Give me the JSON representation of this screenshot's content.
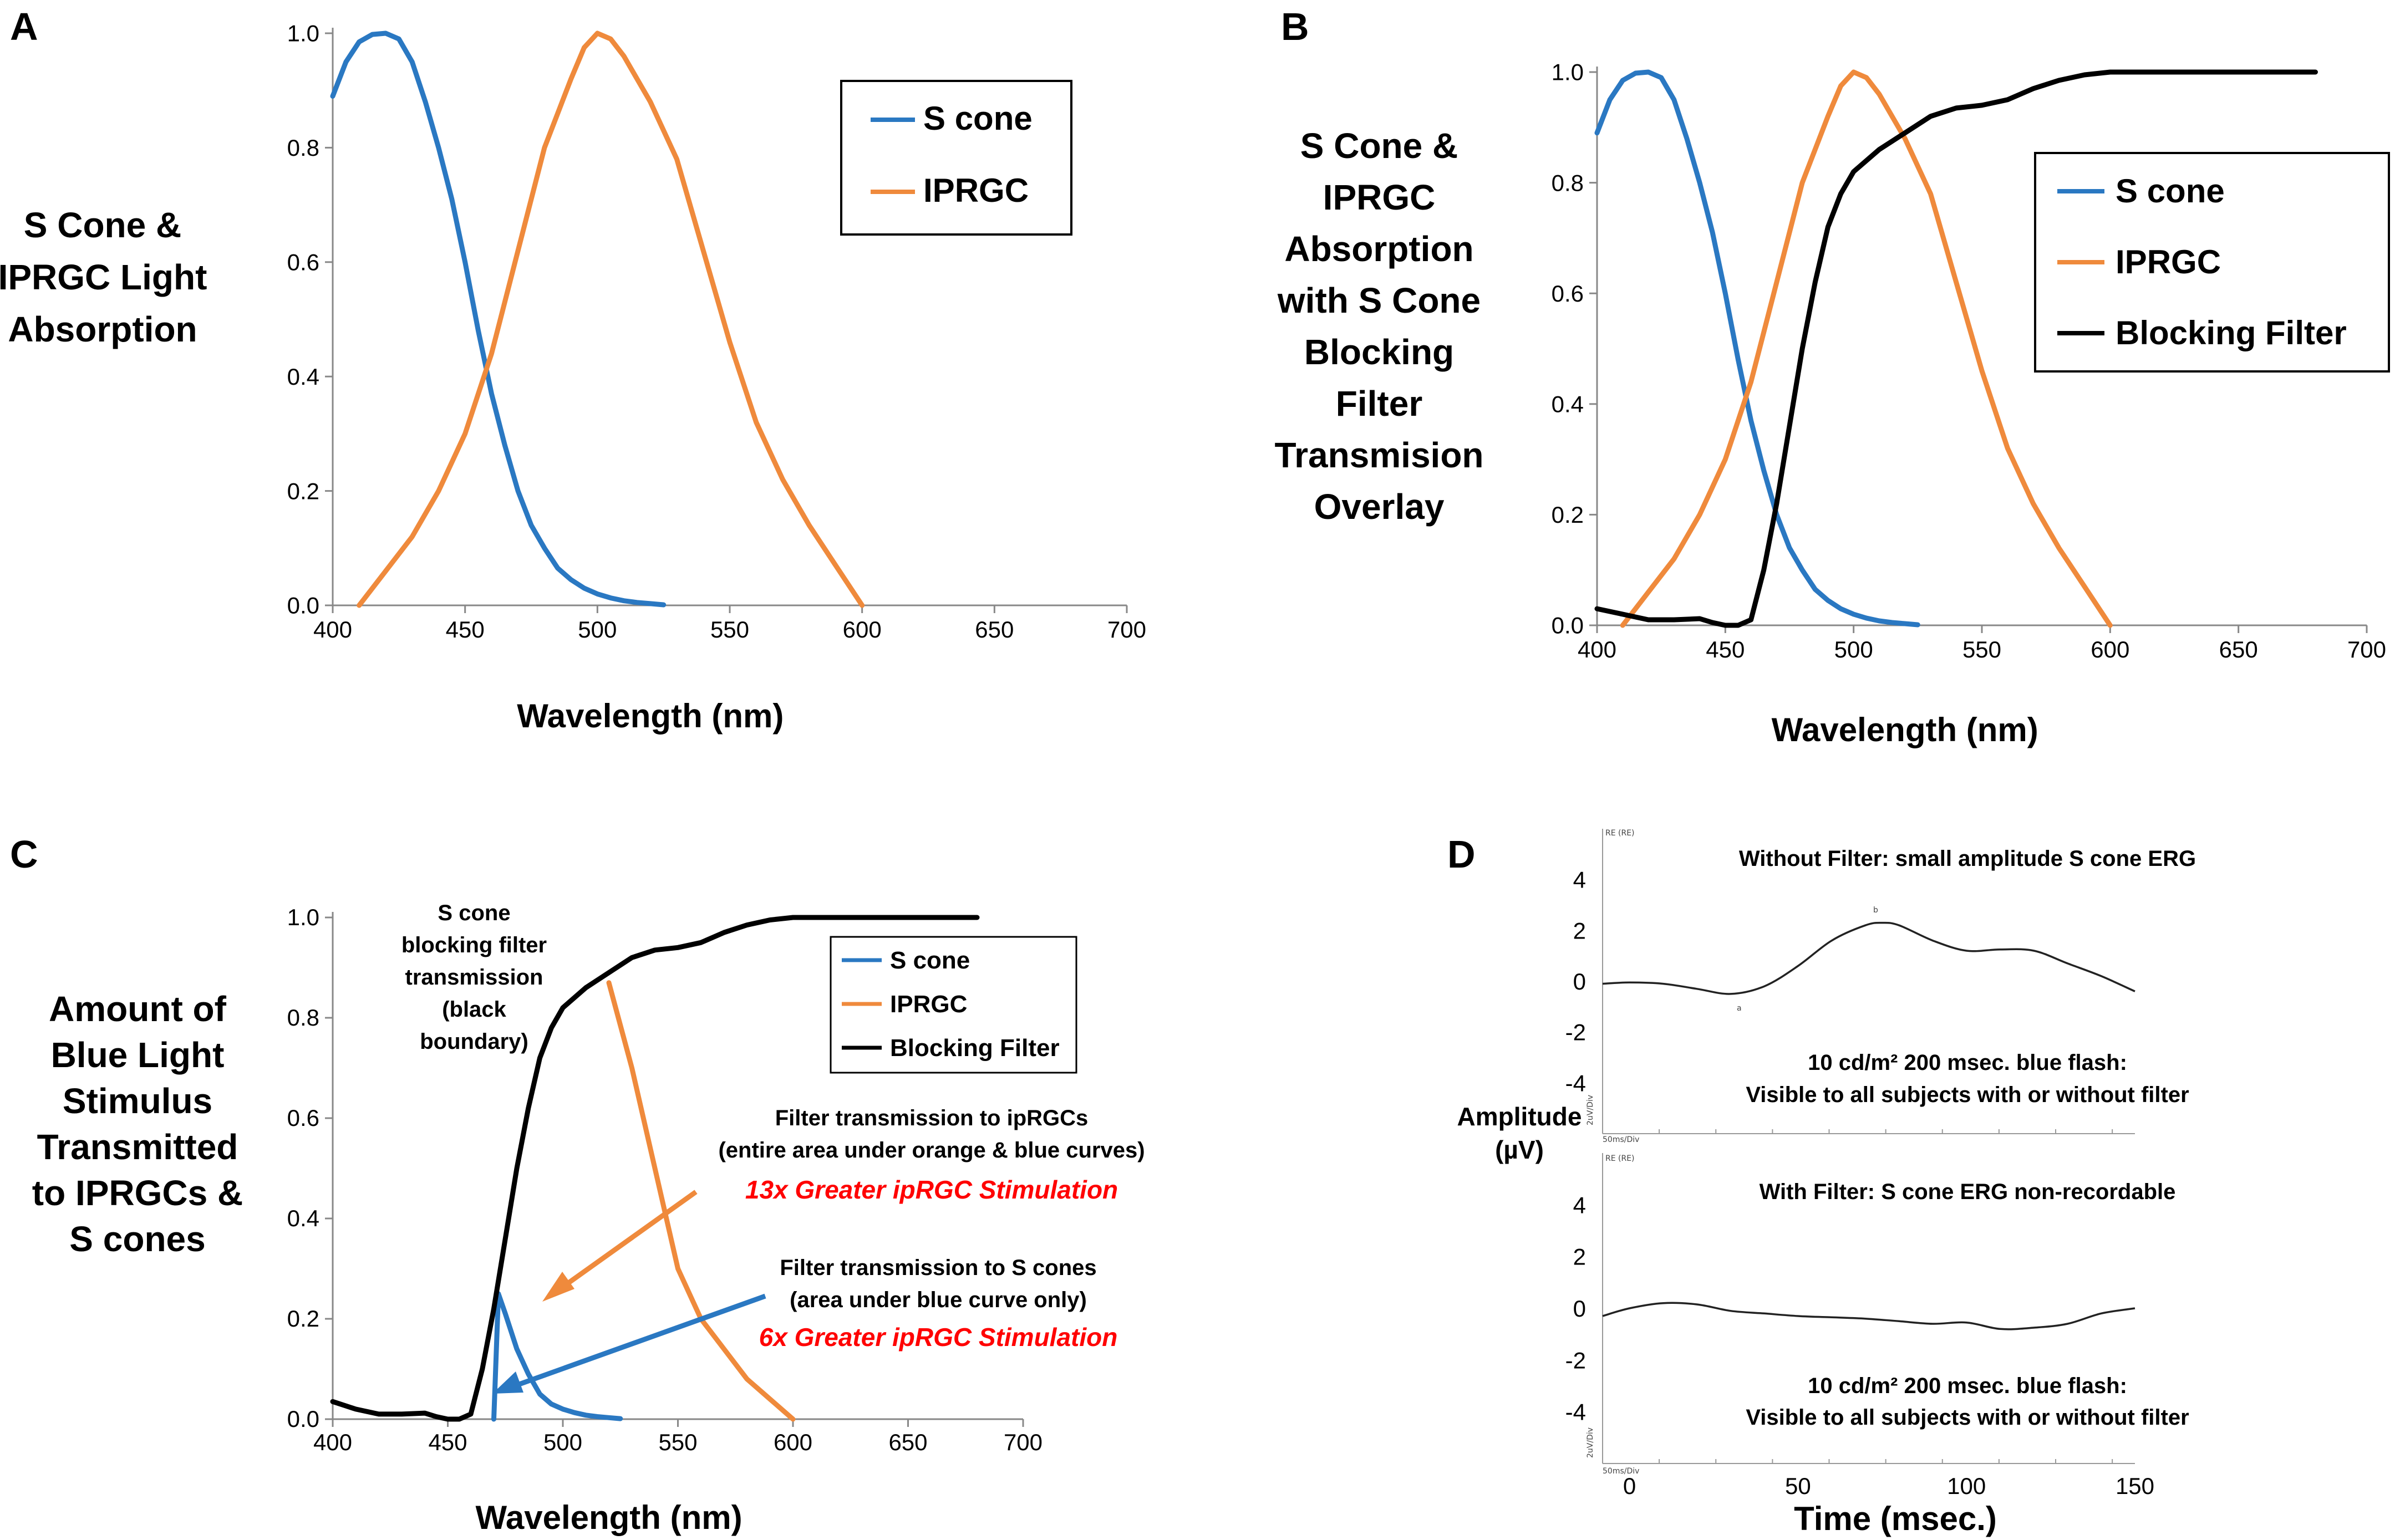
{
  "colors": {
    "s_cone": "#2a78c2",
    "iprgc": "#ef8a3c",
    "blocking": "#000000",
    "red_text": "#ff0000",
    "trace": "#222222"
  },
  "panels": {
    "A": {
      "letter": "A",
      "side_label": [
        "S Cone &",
        "IPRGC Light",
        "Absorption"
      ],
      "legend": [
        "S cone",
        "IPRGC"
      ]
    },
    "B": {
      "letter": "B",
      "side_label": [
        "S Cone &",
        "IPRGC",
        "Absorption",
        "with S Cone",
        "Blocking",
        "Filter",
        "Transmision",
        "Overlay"
      ],
      "legend": [
        "S cone",
        "IPRGC",
        "Blocking Filter"
      ]
    },
    "C": {
      "letter": "C",
      "side_label": [
        "Amount of",
        "Blue Light",
        "Stimulus",
        "Transmitted",
        "to IPRGCs &",
        "S cones"
      ],
      "legend": [
        "S cone",
        "IPRGC",
        "Blocking Filter"
      ],
      "annotations": {
        "filter_boundary": [
          "S cone",
          "blocking filter",
          "transmission",
          "(black",
          "boundary)"
        ],
        "iprgc_transmission": [
          "Filter transmission to ipRGCs",
          "(entire area under orange & blue curves)"
        ],
        "iprgc_gain": "13x Greater ipRGC Stimulation",
        "scone_transmission": [
          "Filter transmission to S cones",
          "(area under blue curve only)"
        ],
        "scone_gain": "6x Greater ipRGC Stimulation"
      }
    },
    "D": {
      "letter": "D",
      "ylabel_lines": [
        "Amplitude",
        "(µV)"
      ],
      "xlabel": "Time (msec.)",
      "top_title": "Without Filter: small amplitude S cone ERG",
      "bottom_title": "With Filter: S cone ERG non-recordable",
      "flash_line1": "10 cd/m² 200 msec. blue flash:",
      "flash_line2": "Visible to all subjects with or without filter",
      "flash_line1_b": "10 cd/m² 200 msec. blue flash:",
      "flash_line2_b": "Visible to all subjects with or without filter",
      "scale_label": "50ms/Div",
      "scale_label_b": "50ms/Div",
      "channel_label": "RE (RE)",
      "channel_label_b": "RE (RE)",
      "unit_label": "2uV/Div",
      "unit_label_b": "2uV/Div",
      "peak_a": "a",
      "peak_b": "b"
    }
  },
  "chart_data": [
    {
      "panel": "A",
      "type": "line",
      "title": "",
      "xlabel": "Wavelength (nm)",
      "ylabel": "S Cone & IPRGC Light Absorption",
      "xlim": [
        400,
        700
      ],
      "ylim": [
        0,
        1.0
      ],
      "xticks": [
        400,
        450,
        500,
        550,
        600,
        650,
        700
      ],
      "yticks": [
        0.0,
        0.2,
        0.4,
        0.6,
        0.8,
        1.0
      ],
      "series": [
        {
          "name": "S cone",
          "color": "#2a78c2",
          "x": [
            400,
            405,
            410,
            415,
            420,
            425,
            430,
            435,
            440,
            445,
            450,
            455,
            460,
            465,
            470,
            475,
            480,
            485,
            490,
            495,
            500,
            505,
            510,
            515,
            520,
            525
          ],
          "y": [
            0.89,
            0.95,
            0.985,
            0.998,
            1.0,
            0.99,
            0.95,
            0.88,
            0.8,
            0.71,
            0.6,
            0.48,
            0.37,
            0.28,
            0.2,
            0.14,
            0.1,
            0.065,
            0.045,
            0.03,
            0.02,
            0.013,
            0.008,
            0.005,
            0.003,
            0.001
          ]
        },
        {
          "name": "IPRGC",
          "color": "#ef8a3c",
          "x": [
            410,
            420,
            430,
            440,
            450,
            460,
            470,
            480,
            490,
            495,
            500,
            505,
            510,
            520,
            530,
            540,
            550,
            560,
            570,
            580,
            590,
            600
          ],
          "y": [
            0.0,
            0.06,
            0.12,
            0.2,
            0.3,
            0.44,
            0.62,
            0.8,
            0.92,
            0.975,
            1.0,
            0.99,
            0.96,
            0.88,
            0.78,
            0.62,
            0.46,
            0.32,
            0.22,
            0.14,
            0.07,
            0.0
          ]
        }
      ],
      "legend": {
        "entries": [
          "S cone",
          "IPRGC"
        ],
        "placement": "top-right"
      }
    },
    {
      "panel": "B",
      "type": "line",
      "title": "",
      "xlabel": "Wavelength (nm)",
      "ylabel": "S Cone & IPRGC Absorption with S Cone Blocking Filter Transmision Overlay",
      "xlim": [
        400,
        700
      ],
      "ylim": [
        0,
        1.0
      ],
      "xticks": [
        400,
        450,
        500,
        550,
        600,
        650,
        700
      ],
      "yticks": [
        0.0,
        0.2,
        0.4,
        0.6,
        0.8,
        1.0
      ],
      "series": [
        {
          "name": "S cone",
          "color": "#2a78c2",
          "x": [
            400,
            405,
            410,
            415,
            420,
            425,
            430,
            435,
            440,
            445,
            450,
            455,
            460,
            465,
            470,
            475,
            480,
            485,
            490,
            495,
            500,
            505,
            510,
            515,
            520,
            525
          ],
          "y": [
            0.89,
            0.95,
            0.985,
            0.998,
            1.0,
            0.99,
            0.95,
            0.88,
            0.8,
            0.71,
            0.6,
            0.48,
            0.37,
            0.28,
            0.2,
            0.14,
            0.1,
            0.065,
            0.045,
            0.03,
            0.02,
            0.013,
            0.008,
            0.005,
            0.003,
            0.001
          ]
        },
        {
          "name": "IPRGC",
          "color": "#ef8a3c",
          "x": [
            410,
            420,
            430,
            440,
            450,
            460,
            470,
            480,
            490,
            495,
            500,
            505,
            510,
            520,
            530,
            540,
            550,
            560,
            570,
            580,
            590,
            600
          ],
          "y": [
            0.0,
            0.06,
            0.12,
            0.2,
            0.3,
            0.44,
            0.62,
            0.8,
            0.92,
            0.975,
            1.0,
            0.99,
            0.96,
            0.88,
            0.78,
            0.62,
            0.46,
            0.32,
            0.22,
            0.14,
            0.07,
            0.0
          ]
        },
        {
          "name": "Blocking Filter",
          "color": "#000000",
          "x": [
            400,
            410,
            420,
            430,
            440,
            445,
            450,
            455,
            460,
            465,
            470,
            475,
            480,
            485,
            490,
            495,
            500,
            510,
            520,
            530,
            540,
            550,
            560,
            570,
            580,
            590,
            600,
            610,
            620,
            640,
            660,
            680
          ],
          "y": [
            0.03,
            0.02,
            0.01,
            0.01,
            0.012,
            0.005,
            0.0,
            0.0,
            0.01,
            0.1,
            0.22,
            0.36,
            0.5,
            0.62,
            0.72,
            0.78,
            0.82,
            0.86,
            0.89,
            0.92,
            0.935,
            0.94,
            0.95,
            0.97,
            0.985,
            0.995,
            1.0,
            1.0,
            1.0,
            1.0,
            1.0,
            1.0
          ]
        }
      ],
      "legend": {
        "entries": [
          "S cone",
          "IPRGC",
          "Blocking Filter"
        ],
        "placement": "top-right"
      }
    },
    {
      "panel": "C",
      "type": "line",
      "title": "",
      "xlabel": "Wavelength (nm)",
      "ylabel": "Amount of Blue Light Stimulus Transmitted to IPRGCs & S cones",
      "xlim": [
        400,
        700
      ],
      "ylim": [
        0,
        1.0
      ],
      "xticks": [
        400,
        450,
        500,
        550,
        600,
        650,
        700
      ],
      "yticks": [
        0.0,
        0.2,
        0.4,
        0.6,
        0.8,
        1.0
      ],
      "series": [
        {
          "name": "S cone",
          "color": "#2a78c2",
          "x": [
            470,
            472,
            475,
            480,
            485,
            490,
            495,
            500,
            505,
            510,
            515,
            520,
            525
          ],
          "y": [
            0.0,
            0.25,
            0.21,
            0.14,
            0.09,
            0.05,
            0.03,
            0.02,
            0.013,
            0.008,
            0.005,
            0.003,
            0.001
          ]
        },
        {
          "name": "IPRGC",
          "color": "#ef8a3c",
          "x": [
            520,
            530,
            540,
            550,
            560,
            570,
            580,
            590,
            600
          ],
          "y": [
            0.87,
            0.7,
            0.5,
            0.3,
            0.2,
            0.14,
            0.08,
            0.04,
            0.0
          ]
        },
        {
          "name": "Blocking Filter",
          "color": "#000000",
          "x": [
            400,
            410,
            420,
            430,
            440,
            445,
            450,
            455,
            460,
            465,
            470,
            475,
            480,
            485,
            490,
            495,
            500,
            510,
            520,
            530,
            540,
            550,
            560,
            570,
            580,
            590,
            600,
            610,
            620,
            640,
            660,
            680
          ],
          "y": [
            0.035,
            0.02,
            0.01,
            0.01,
            0.012,
            0.005,
            0.0,
            0.0,
            0.01,
            0.1,
            0.22,
            0.36,
            0.5,
            0.62,
            0.72,
            0.78,
            0.82,
            0.86,
            0.89,
            0.92,
            0.935,
            0.94,
            0.95,
            0.97,
            0.985,
            0.995,
            1.0,
            1.0,
            1.0,
            1.0,
            1.0,
            1.0
          ]
        }
      ],
      "legend": {
        "entries": [
          "S cone",
          "IPRGC",
          "Blocking Filter"
        ],
        "placement": "top-right"
      }
    },
    {
      "panel": "D-top",
      "type": "line",
      "title": "Without Filter: small amplitude S cone ERG",
      "xlabel": "Time (msec.)",
      "ylabel": "Amplitude (µV)",
      "xlim": [
        -8,
        150
      ],
      "ylim": [
        -6,
        6
      ],
      "xticks": [
        0,
        50,
        100,
        150
      ],
      "yticks": [
        -4,
        -2,
        0,
        2,
        4
      ],
      "series": [
        {
          "name": "ERG without filter",
          "color": "#222222",
          "x": [
            -8,
            0,
            10,
            20,
            30,
            40,
            50,
            60,
            70,
            75,
            80,
            90,
            100,
            110,
            120,
            130,
            140,
            150
          ],
          "y": [
            -0.1,
            -0.05,
            -0.1,
            -0.3,
            -0.5,
            -0.2,
            0.6,
            1.6,
            2.2,
            2.3,
            2.2,
            1.6,
            1.2,
            1.25,
            1.2,
            0.7,
            0.2,
            -0.4
          ]
        }
      ]
    },
    {
      "panel": "D-bottom",
      "type": "line",
      "title": "With Filter: S cone ERG non-recordable",
      "xlabel": "Time (msec.)",
      "ylabel": "Amplitude (µV)",
      "xlim": [
        -8,
        150
      ],
      "ylim": [
        -6,
        6
      ],
      "xticks": [
        0,
        50,
        100,
        150
      ],
      "yticks": [
        -4,
        -2,
        0,
        2,
        4
      ],
      "series": [
        {
          "name": "ERG with filter",
          "color": "#222222",
          "x": [
            -8,
            0,
            10,
            20,
            30,
            40,
            50,
            60,
            70,
            80,
            90,
            100,
            110,
            120,
            130,
            140,
            150
          ],
          "y": [
            -0.3,
            0.0,
            0.2,
            0.15,
            -0.1,
            -0.2,
            -0.3,
            -0.35,
            -0.4,
            -0.5,
            -0.6,
            -0.55,
            -0.8,
            -0.75,
            -0.6,
            -0.2,
            0.0
          ]
        }
      ]
    }
  ]
}
